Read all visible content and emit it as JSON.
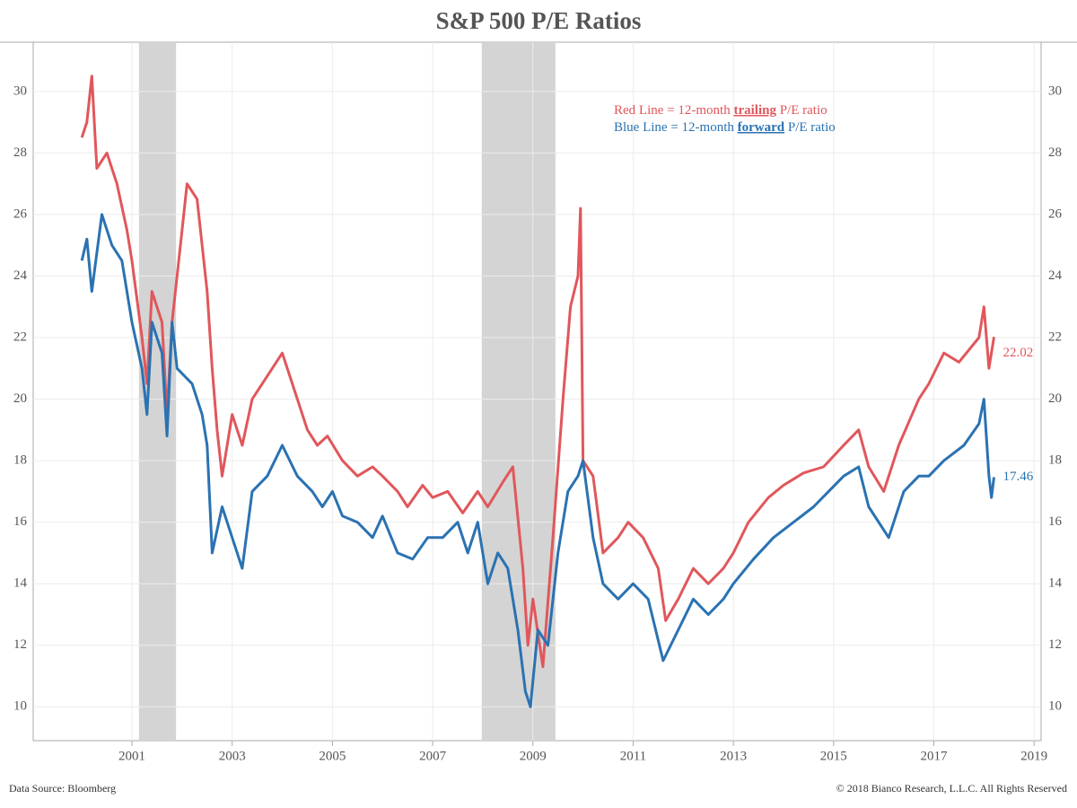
{
  "chart_data": {
    "type": "line",
    "title": "S&P 500 P/E Ratios",
    "source": "Data Source: Bloomberg",
    "copyright": "© 2018 Bianco Research, L.L.C. All Rights Reserved",
    "xlim": [
      1999.03,
      2019.14
    ],
    "xticks": [
      2001,
      2003,
      2005,
      2007,
      2009,
      2011,
      2013,
      2015,
      2017,
      2019
    ],
    "ylim": [
      8.9,
      31.6
    ],
    "yticks": [
      10,
      12,
      14,
      16,
      18,
      20,
      22,
      24,
      26,
      28,
      30
    ],
    "grid": true,
    "shaded_periods": [
      {
        "start": 2001.14,
        "end": 2001.88
      },
      {
        "start": 2007.98,
        "end": 2009.45
      }
    ],
    "legend": [
      {
        "prefix": "Red Line = 12-month ",
        "suffix": " P/E ratio"
      },
      {
        "prefix": "Blue Line = 12-month ",
        "suffix": " P/E ratio"
      }
    ],
    "series": [
      {
        "name": "trailing",
        "color": "#e0575b",
        "x": [
          2000.0,
          2000.1,
          2000.2,
          2000.3,
          2000.5,
          2000.7,
          2000.9,
          2001.0,
          2001.2,
          2001.3,
          2001.4,
          2001.6,
          2001.7,
          2001.8,
          2002.0,
          2002.1,
          2002.3,
          2002.5,
          2002.6,
          2002.7,
          2002.8,
          2003.0,
          2003.2,
          2003.4,
          2003.6,
          2003.8,
          2004.0,
          2004.2,
          2004.5,
          2004.7,
          2004.9,
          2005.2,
          2005.5,
          2005.8,
          2006.0,
          2006.3,
          2006.5,
          2006.8,
          2007.0,
          2007.3,
          2007.6,
          2007.9,
          2008.1,
          2008.4,
          2008.6,
          2008.8,
          2008.9,
          2009.0,
          2009.2,
          2009.4,
          2009.6,
          2009.75,
          2009.9,
          2009.95,
          2010.0,
          2010.2,
          2010.4,
          2010.7,
          2010.9,
          2011.2,
          2011.5,
          2011.65,
          2011.9,
          2012.2,
          2012.5,
          2012.8,
          2013.0,
          2013.3,
          2013.7,
          2014.0,
          2014.4,
          2014.8,
          2015.2,
          2015.5,
          2015.7,
          2016.0,
          2016.3,
          2016.7,
          2016.9,
          2017.2,
          2017.5,
          2017.9,
          2018.0,
          2018.1,
          2018.2
        ],
        "values": [
          28.5,
          29.0,
          30.5,
          27.5,
          28.0,
          27.0,
          25.5,
          24.5,
          22.0,
          20.5,
          23.5,
          22.5,
          19.5,
          22.5,
          25.5,
          27.0,
          26.5,
          23.5,
          21.0,
          19.0,
          17.5,
          19.5,
          18.5,
          20.0,
          20.5,
          21.0,
          21.5,
          20.5,
          19.0,
          18.5,
          18.8,
          18.0,
          17.5,
          17.8,
          17.5,
          17.0,
          16.5,
          17.2,
          16.8,
          17.0,
          16.3,
          17.0,
          16.5,
          17.3,
          17.8,
          14.5,
          12.0,
          13.5,
          11.3,
          15.5,
          20.0,
          23.0,
          24.0,
          26.2,
          18.0,
          17.5,
          15.0,
          15.5,
          16.0,
          15.5,
          14.5,
          12.8,
          13.5,
          14.5,
          14.0,
          14.5,
          15.0,
          16.0,
          16.8,
          17.2,
          17.6,
          17.8,
          18.5,
          19.0,
          17.8,
          17.0,
          18.5,
          20.0,
          20.5,
          21.5,
          21.2,
          22.0,
          23.0,
          21.0,
          22.02
        ]
      },
      {
        "name": "forward",
        "color": "#2a72b2",
        "x": [
          2000.0,
          2000.1,
          2000.2,
          2000.4,
          2000.6,
          2000.8,
          2001.0,
          2001.2,
          2001.3,
          2001.4,
          2001.6,
          2001.7,
          2001.8,
          2001.9,
          2002.2,
          2002.4,
          2002.5,
          2002.6,
          2002.8,
          2003.0,
          2003.2,
          2003.4,
          2003.7,
          2004.0,
          2004.3,
          2004.6,
          2004.8,
          2005.0,
          2005.2,
          2005.5,
          2005.8,
          2006.0,
          2006.3,
          2006.6,
          2006.9,
          2007.2,
          2007.5,
          2007.7,
          2007.9,
          2008.1,
          2008.3,
          2008.5,
          2008.7,
          2008.85,
          2008.95,
          2009.1,
          2009.3,
          2009.5,
          2009.7,
          2009.9,
          2010.0,
          2010.2,
          2010.4,
          2010.7,
          2011.0,
          2011.3,
          2011.6,
          2011.9,
          2012.2,
          2012.5,
          2012.8,
          2013.0,
          2013.4,
          2013.8,
          2014.2,
          2014.6,
          2014.9,
          2015.2,
          2015.5,
          2015.7,
          2016.1,
          2016.4,
          2016.7,
          2016.9,
          2017.2,
          2017.6,
          2017.9,
          2018.0,
          2018.1,
          2018.15,
          2018.2
        ],
        "values": [
          24.5,
          25.2,
          23.5,
          26.0,
          25.0,
          24.5,
          22.5,
          21.0,
          19.5,
          22.5,
          21.5,
          18.8,
          22.5,
          21.0,
          20.5,
          19.5,
          18.5,
          15.0,
          16.5,
          15.5,
          14.5,
          17.0,
          17.5,
          18.5,
          17.5,
          17.0,
          16.5,
          17.0,
          16.2,
          16.0,
          15.5,
          16.2,
          15.0,
          14.8,
          15.5,
          15.5,
          16.0,
          15.0,
          16.0,
          14.0,
          15.0,
          14.5,
          12.5,
          10.5,
          10.0,
          12.5,
          12.0,
          15.0,
          17.0,
          17.5,
          18.0,
          15.5,
          14.0,
          13.5,
          14.0,
          13.5,
          11.5,
          12.5,
          13.5,
          13.0,
          13.5,
          14.0,
          14.8,
          15.5,
          16.0,
          16.5,
          17.0,
          17.5,
          17.8,
          16.5,
          15.5,
          17.0,
          17.5,
          17.5,
          18.0,
          18.5,
          19.2,
          20.0,
          17.5,
          16.8,
          17.46
        ]
      }
    ]
  }
}
